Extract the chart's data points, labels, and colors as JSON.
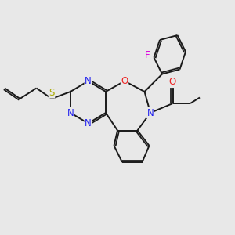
{
  "bg_color": "#e8e8e8",
  "bond_color": "#1a1a1a",
  "N_color": "#2222ee",
  "O_color": "#ee2222",
  "S_color": "#aaaa00",
  "F_color": "#dd00dd",
  "lw": 1.4,
  "dbo": 0.07,
  "fs": 8.5,
  "xlim": [
    0,
    10
  ],
  "ylim": [
    0,
    10
  ]
}
